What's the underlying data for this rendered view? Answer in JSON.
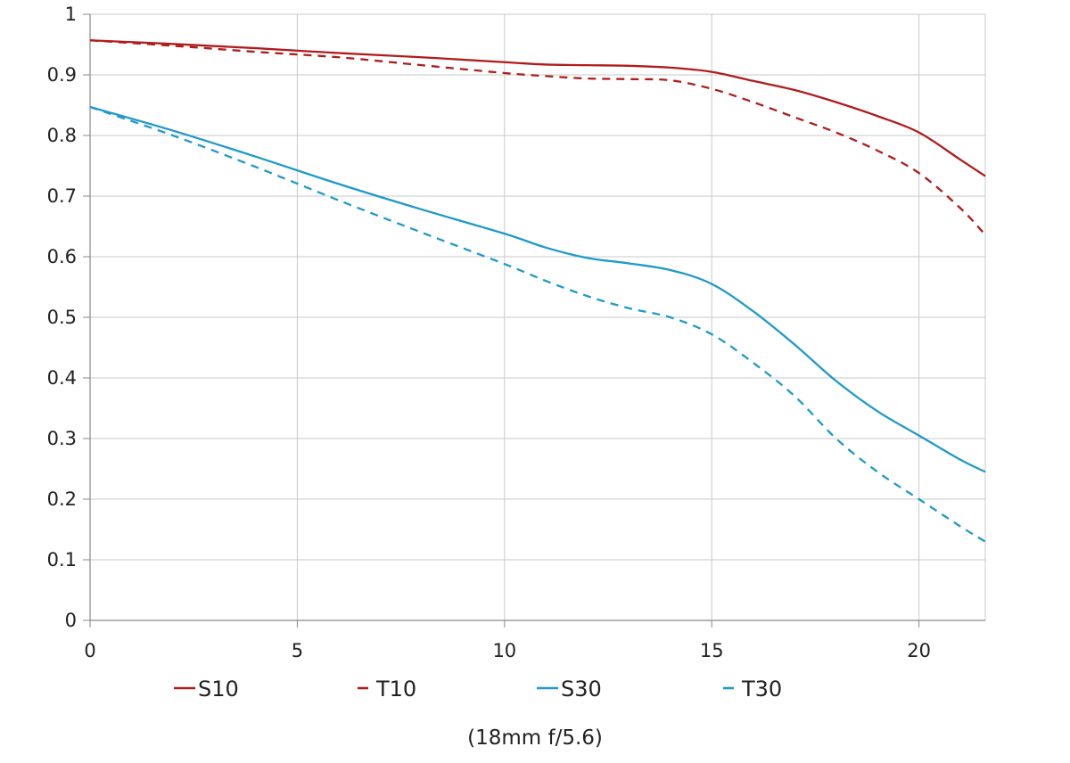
{
  "chart_data": {
    "type": "line",
    "title": "",
    "subtitle": "",
    "xlabel": "",
    "ylabel": "",
    "caption": "(18mm f/5.6)",
    "xlim": [
      0,
      21.6
    ],
    "ylim": [
      0,
      1
    ],
    "grid": true,
    "legend_position": "bottom",
    "x_ticks": [
      "0",
      "5",
      "10",
      "15",
      "20"
    ],
    "y_ticks": [
      "0",
      "0.1",
      "0.2",
      "0.3",
      "0.4",
      "0.5",
      "0.6",
      "0.7",
      "0.8",
      "0.9",
      "1"
    ],
    "x_tick_values": [
      0,
      5,
      10,
      15,
      20
    ],
    "y_tick_values": [
      0,
      0.1,
      0.2,
      0.3,
      0.4,
      0.5,
      0.6,
      0.7,
      0.8,
      0.9,
      1
    ],
    "series": [
      {
        "name": "S10",
        "color": "#b01c1c",
        "dash": false,
        "points": [
          [
            0,
            0.957
          ],
          [
            2,
            0.951
          ],
          [
            4,
            0.944
          ],
          [
            6,
            0.936
          ],
          [
            8,
            0.929
          ],
          [
            10,
            0.921
          ],
          [
            11,
            0.917
          ],
          [
            12,
            0.916
          ],
          [
            13,
            0.915
          ],
          [
            14,
            0.912
          ],
          [
            15,
            0.905
          ],
          [
            16,
            0.89
          ],
          [
            17,
            0.875
          ],
          [
            18,
            0.855
          ],
          [
            19,
            0.832
          ],
          [
            20,
            0.805
          ],
          [
            21,
            0.76
          ],
          [
            21.6,
            0.733
          ]
        ]
      },
      {
        "name": "T10",
        "color": "#b01c1c",
        "dash": true,
        "points": [
          [
            0,
            0.957
          ],
          [
            2,
            0.948
          ],
          [
            4,
            0.938
          ],
          [
            6,
            0.929
          ],
          [
            8,
            0.916
          ],
          [
            10,
            0.903
          ],
          [
            11,
            0.898
          ],
          [
            12,
            0.894
          ],
          [
            13,
            0.893
          ],
          [
            14,
            0.891
          ],
          [
            15,
            0.877
          ],
          [
            16,
            0.855
          ],
          [
            17,
            0.83
          ],
          [
            18,
            0.805
          ],
          [
            19,
            0.775
          ],
          [
            20,
            0.738
          ],
          [
            21,
            0.68
          ],
          [
            21.6,
            0.636
          ]
        ]
      },
      {
        "name": "S30",
        "color": "#1f9ac9",
        "dash": false,
        "points": [
          [
            0,
            0.847
          ],
          [
            2,
            0.808
          ],
          [
            4,
            0.765
          ],
          [
            6,
            0.72
          ],
          [
            8,
            0.678
          ],
          [
            10,
            0.638
          ],
          [
            11,
            0.615
          ],
          [
            12,
            0.598
          ],
          [
            13,
            0.589
          ],
          [
            14,
            0.578
          ],
          [
            15,
            0.555
          ],
          [
            16,
            0.51
          ],
          [
            17,
            0.455
          ],
          [
            18,
            0.395
          ],
          [
            19,
            0.345
          ],
          [
            20,
            0.305
          ],
          [
            21,
            0.265
          ],
          [
            21.6,
            0.245
          ]
        ]
      },
      {
        "name": "T30",
        "color": "#1f9ac9",
        "dash": true,
        "points": [
          [
            0,
            0.847
          ],
          [
            2,
            0.8
          ],
          [
            4,
            0.748
          ],
          [
            6,
            0.693
          ],
          [
            8,
            0.64
          ],
          [
            10,
            0.588
          ],
          [
            11,
            0.56
          ],
          [
            12,
            0.535
          ],
          [
            13,
            0.515
          ],
          [
            14,
            0.5
          ],
          [
            15,
            0.472
          ],
          [
            16,
            0.425
          ],
          [
            17,
            0.37
          ],
          [
            18,
            0.3
          ],
          [
            19,
            0.245
          ],
          [
            20,
            0.2
          ],
          [
            21,
            0.155
          ],
          [
            21.6,
            0.13
          ]
        ]
      }
    ]
  }
}
